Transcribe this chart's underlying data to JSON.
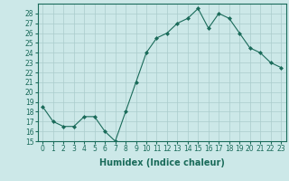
{
  "x": [
    0,
    1,
    2,
    3,
    4,
    5,
    6,
    7,
    8,
    9,
    10,
    11,
    12,
    13,
    14,
    15,
    16,
    17,
    18,
    19,
    20,
    21,
    22,
    23
  ],
  "y": [
    18.5,
    17.0,
    16.5,
    16.5,
    17.5,
    17.5,
    16.0,
    15.0,
    18.0,
    21.0,
    24.0,
    25.5,
    26.0,
    27.0,
    27.5,
    28.5,
    26.5,
    28.0,
    27.5,
    26.0,
    24.5,
    24.0,
    23.0,
    22.5
  ],
  "line_color": "#1a6b5a",
  "marker": "D",
  "marker_size": 2.0,
  "bg_color": "#cce8e8",
  "grid_color": "#aacccc",
  "xlabel": "Humidex (Indice chaleur)",
  "ylabel": "",
  "xlim": [
    -0.5,
    23.5
  ],
  "ylim": [
    15,
    29
  ],
  "yticks": [
    15,
    16,
    17,
    18,
    19,
    20,
    21,
    22,
    23,
    24,
    25,
    26,
    27,
    28
  ],
  "xticks": [
    0,
    1,
    2,
    3,
    4,
    5,
    6,
    7,
    8,
    9,
    10,
    11,
    12,
    13,
    14,
    15,
    16,
    17,
    18,
    19,
    20,
    21,
    22,
    23
  ],
  "tick_fontsize": 5.5,
  "label_fontsize": 7.0
}
